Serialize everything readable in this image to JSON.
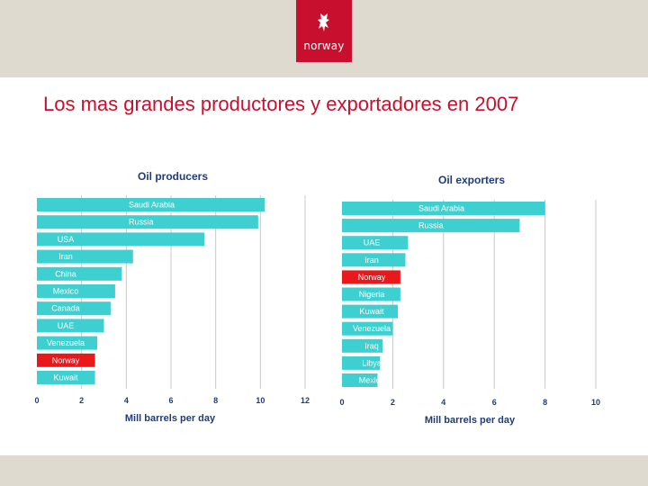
{
  "slide": {
    "title": "Los mas grandes productores y exportadores en 2007",
    "logo_text": "norway",
    "colors": {
      "band": "#dedad0",
      "logo_red": "#c8102e",
      "title_red": "#c8102e",
      "bar_teal": "#3ecfd0",
      "highlight_red": "#e8181b",
      "text_navy": "#1f3c78"
    }
  },
  "chart_data": [
    {
      "type": "bar",
      "orientation": "horizontal",
      "title": "Oil producers",
      "xlabel": "Mill barrels per day",
      "xlim": [
        0,
        12
      ],
      "xticks": [
        0,
        2,
        4,
        6,
        8,
        10,
        12
      ],
      "categories": [
        "Saudi Arabia",
        "Russia",
        "USA",
        "Iran",
        "China",
        "Mexico",
        "Canada",
        "UAE",
        "Venezuela",
        "Norway",
        "Kuwait"
      ],
      "values": [
        10.2,
        9.9,
        7.5,
        4.3,
        3.8,
        3.5,
        3.3,
        3.0,
        2.7,
        2.6,
        2.6
      ],
      "highlight": "Norway",
      "grid": "vertical"
    },
    {
      "type": "bar",
      "orientation": "horizontal",
      "title": "Oil exporters",
      "xlabel": "Mill barrels per day",
      "xlim": [
        0,
        10
      ],
      "xticks": [
        0,
        2,
        4,
        6,
        8,
        10
      ],
      "categories": [
        "Saudi Arabia",
        "Russia",
        "UAE",
        "Iran",
        "Norway",
        "Nigeria",
        "Kuwait",
        "Venezuela",
        "Iraq",
        "Libya",
        "Mexico"
      ],
      "values": [
        8.0,
        7.0,
        2.6,
        2.5,
        2.3,
        2.3,
        2.2,
        2.0,
        1.6,
        1.5,
        1.4
      ],
      "highlight": "Norway",
      "grid": "vertical"
    }
  ]
}
